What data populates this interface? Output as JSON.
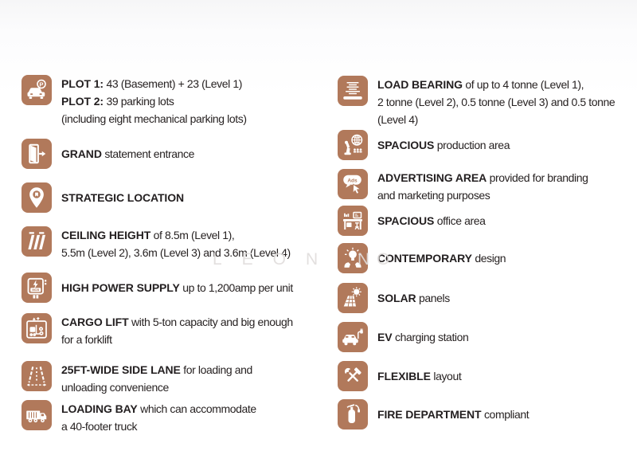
{
  "theme": {
    "icon_color": "#b1795b",
    "text_color": "#272222"
  },
  "watermark": {
    "letters": "LEON",
    "extra_letters": "NO"
  },
  "columns": {
    "left": {
      "items": [
        {
          "id": "plot-parking",
          "icon": "parking-icon",
          "lines": [
            [
              {
                "text": "PLOT 1:",
                "bold": true
              },
              {
                "text": " 43 (Basement) + 23 (Level 1)",
                "bold": false
              }
            ],
            [
              {
                "text": "PLOT 2:",
                "bold": true
              },
              {
                "text": " 39 parking lots",
                "bold": false
              }
            ],
            [
              {
                "text": "(including eight mechanical parking lots)",
                "bold": false
              }
            ]
          ]
        },
        {
          "id": "grand-entrance",
          "icon": "door-icon",
          "lines": [
            [
              {
                "text": "GRAND",
                "bold": true
              },
              {
                "text": " statement entrance",
                "bold": false
              }
            ]
          ]
        },
        {
          "id": "strategic-location",
          "icon": "location-pin-icon",
          "lines": [
            [
              {
                "text": "STRATEGIC LOCATION",
                "bold": true
              }
            ]
          ]
        },
        {
          "id": "ceiling-height",
          "icon": "ceiling-height-icon",
          "lines": [
            [
              {
                "text": "CEILING HEIGHT",
                "bold": true
              },
              {
                "text": " of 8.5m (Level 1),",
                "bold": false
              }
            ],
            [
              {
                "text": "5.5m (Level 2), 3.6m (Level 3) and 3.6m (Level 4)",
                "bold": false
              }
            ]
          ]
        },
        {
          "id": "high-power-supply",
          "icon": "power-supply-icon",
          "lines": [
            [
              {
                "text": "HIGH POWER SUPPLY",
                "bold": true
              },
              {
                "text": " up to 1,200amp per unit",
                "bold": false
              }
            ]
          ]
        },
        {
          "id": "cargo-lift",
          "icon": "cargo-lift-icon",
          "lines": [
            [
              {
                "text": "CARGO LIFT",
                "bold": true
              },
              {
                "text": " with 5-ton capacity and big enough",
                "bold": false
              }
            ],
            [
              {
                "text": "for a forklift",
                "bold": false
              }
            ]
          ]
        },
        {
          "id": "side-lane",
          "icon": "side-lane-icon",
          "lines": [
            [
              {
                "text": "25FT-WIDE SIDE LANE",
                "bold": true
              },
              {
                "text": " for loading and",
                "bold": false
              }
            ],
            [
              {
                "text": "unloading convenience",
                "bold": false
              }
            ]
          ]
        },
        {
          "id": "loading-bay",
          "icon": "loading-bay-truck-icon",
          "lines": [
            [
              {
                "text": "LOADING BAY",
                "bold": true
              },
              {
                "text": " which can accommodate",
                "bold": false
              }
            ],
            [
              {
                "text": "a 40-footer truck",
                "bold": false
              }
            ]
          ]
        }
      ]
    },
    "right": {
      "items": [
        {
          "id": "load-bearing",
          "icon": "load-bearing-icon",
          "lines": [
            [
              {
                "text": "LOAD BEARING",
                "bold": true
              },
              {
                "text": " of up to 4 tonne (Level 1),",
                "bold": false
              }
            ],
            [
              {
                "text": "2 tonne (Level 2), 0.5 tonne (Level 3) and 0.5 tonne",
                "bold": false
              }
            ],
            [
              {
                "text": "(Level 4)",
                "bold": false
              }
            ]
          ]
        },
        {
          "id": "production-area",
          "icon": "production-robot-globe-icon",
          "lines": [
            [
              {
                "text": "SPACIOUS",
                "bold": true
              },
              {
                "text": " production area",
                "bold": false
              }
            ]
          ]
        },
        {
          "id": "advertising-area",
          "icon": "advertising-ads-bubble-icon",
          "lines": [
            [
              {
                "text": "ADVERTISING AREA",
                "bold": true
              },
              {
                "text": " provided for branding",
                "bold": false
              }
            ],
            [
              {
                "text": "and marketing purposes",
                "bold": false
              }
            ]
          ]
        },
        {
          "id": "office-area",
          "icon": "office-desk-icon",
          "lines": [
            [
              {
                "text": "SPACIOUS",
                "bold": true
              },
              {
                "text": " office area",
                "bold": false
              }
            ]
          ]
        },
        {
          "id": "contemporary-design",
          "icon": "idea-bulb-hands-icon",
          "lines": [
            [
              {
                "text": "CONTEMPORARY",
                "bold": true
              },
              {
                "text": " design",
                "bold": false
              }
            ]
          ]
        },
        {
          "id": "solar-panels",
          "icon": "solar-panel-sun-icon",
          "lines": [
            [
              {
                "text": "SOLAR",
                "bold": true
              },
              {
                "text": " panels",
                "bold": false
              }
            ]
          ]
        },
        {
          "id": "ev-charging",
          "icon": "ev-charging-car-icon",
          "lines": [
            [
              {
                "text": "EV",
                "bold": true
              },
              {
                "text": " charging station",
                "bold": false
              }
            ]
          ]
        },
        {
          "id": "flexible-layout",
          "icon": "crossed-tools-icon",
          "lines": [
            [
              {
                "text": "FLEXIBLE",
                "bold": true
              },
              {
                "text": " layout",
                "bold": false
              }
            ]
          ]
        },
        {
          "id": "fire-department",
          "icon": "fire-extinguisher-icon",
          "lines": [
            [
              {
                "text": "FIRE DEPARTMENT",
                "bold": true
              },
              {
                "text": " compliant",
                "bold": false
              }
            ]
          ]
        }
      ]
    }
  }
}
